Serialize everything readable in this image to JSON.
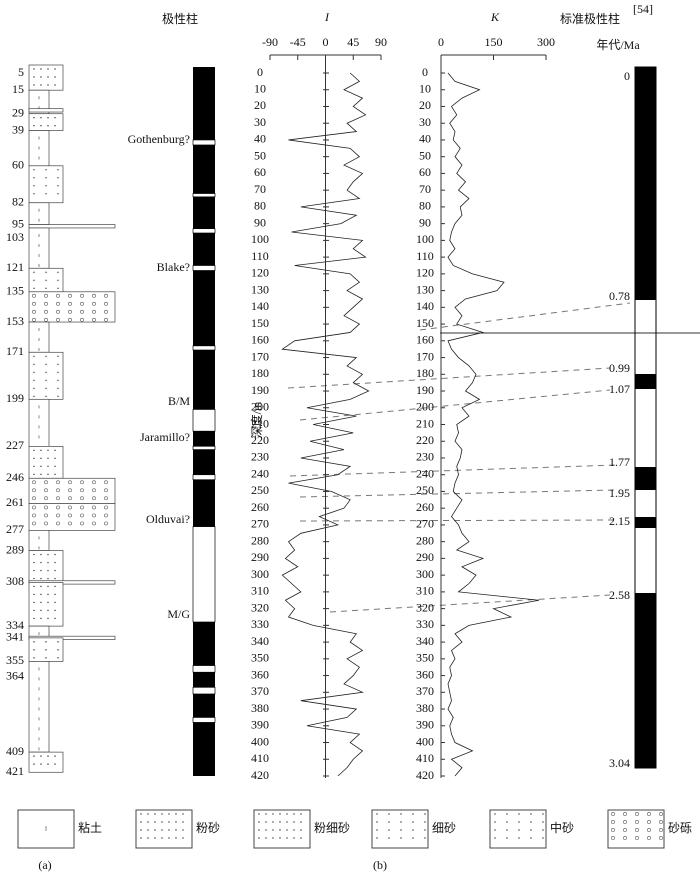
{
  "header": {
    "polarity_column": "极性柱",
    "I_label": "I",
    "K_label": "K",
    "standard_column": "标准极性柱",
    "standard_ref": "[54]",
    "age_label": "年代/Ma",
    "depth_label": "深度/m"
  },
  "lithology": {
    "depth_labels": [
      5,
      15,
      29,
      39,
      60,
      82,
      95,
      103,
      121,
      135,
      153,
      171,
      199,
      227,
      246,
      261,
      277,
      289,
      308,
      334,
      341,
      355,
      364,
      409,
      421
    ],
    "layers": [
      {
        "top": 0,
        "bottom": 15,
        "type": 1
      },
      {
        "top": 15,
        "bottom": 29,
        "type": 0
      },
      {
        "top": 26,
        "bottom": 28,
        "type": 3
      },
      {
        "top": 29,
        "bottom": 39,
        "type": 1
      },
      {
        "top": 39,
        "bottom": 60,
        "type": 0
      },
      {
        "top": 60,
        "bottom": 82,
        "type": 3
      },
      {
        "top": 82,
        "bottom": 95,
        "type": 0
      },
      {
        "top": 95,
        "bottom": 97,
        "type": 5
      },
      {
        "top": 97,
        "bottom": 121,
        "type": 0
      },
      {
        "top": 121,
        "bottom": 135,
        "type": 3
      },
      {
        "top": 135,
        "bottom": 153,
        "type": 5
      },
      {
        "top": 153,
        "bottom": 171,
        "type": 0
      },
      {
        "top": 171,
        "bottom": 199,
        "type": 4
      },
      {
        "top": 199,
        "bottom": 227,
        "type": 0
      },
      {
        "top": 227,
        "bottom": 246,
        "type": 1
      },
      {
        "top": 246,
        "bottom": 261,
        "type": 5
      },
      {
        "top": 261,
        "bottom": 277,
        "type": 5
      },
      {
        "top": 277,
        "bottom": 289,
        "type": 0
      },
      {
        "top": 289,
        "bottom": 308,
        "type": 1
      },
      {
        "top": 307,
        "bottom": 309,
        "type": 5
      },
      {
        "top": 308,
        "bottom": 334,
        "type": 1
      },
      {
        "top": 334,
        "bottom": 341,
        "type": 0
      },
      {
        "top": 340,
        "bottom": 342,
        "type": 5
      },
      {
        "top": 341,
        "bottom": 355,
        "type": 3
      },
      {
        "top": 355,
        "bottom": 409,
        "type": 0
      },
      {
        "top": 409,
        "bottom": 421,
        "type": 1
      }
    ]
  },
  "polarity": {
    "reversed_intervals": [
      [
        40,
        43
      ],
      [
        72,
        74
      ],
      [
        93,
        95.6
      ],
      [
        115,
        118
      ],
      [
        163,
        165.5
      ],
      [
        201,
        214
      ],
      [
        223,
        225
      ],
      [
        240,
        243
      ],
      [
        271,
        328
      ],
      [
        354,
        358
      ],
      [
        367,
        371
      ],
      [
        385,
        388
      ]
    ],
    "events": [
      "Gothenburg?",
      "Blake?",
      "B/M",
      "Jaramillo?",
      "Olduvai?",
      "M/G"
    ]
  },
  "depth": {
    "ylim": [
      0,
      420
    ],
    "ticks": [
      0,
      10,
      20,
      30,
      40,
      50,
      60,
      70,
      80,
      90,
      100,
      110,
      120,
      130,
      140,
      150,
      160,
      170,
      180,
      190,
      200,
      210,
      220,
      230,
      240,
      250,
      260,
      270,
      280,
      290,
      300,
      310,
      320,
      330,
      340,
      350,
      360,
      370,
      380,
      390,
      400,
      410,
      420
    ],
    "depths": [
      0,
      5,
      10,
      15,
      20,
      25,
      30,
      35,
      40,
      45,
      50,
      55,
      60,
      65,
      70,
      75,
      80,
      85,
      90,
      95,
      100,
      105,
      110,
      115,
      120,
      125,
      130,
      135,
      140,
      145,
      150,
      155,
      160,
      165,
      170,
      175,
      180,
      185,
      190,
      195,
      200,
      205,
      210,
      215,
      220,
      225,
      230,
      235,
      240,
      245,
      250,
      255,
      260,
      265,
      270,
      275,
      280,
      285,
      290,
      295,
      300,
      305,
      310,
      315,
      320,
      325,
      330,
      335,
      340,
      345,
      350,
      355,
      360,
      365,
      370,
      375,
      380,
      385,
      390,
      395,
      400,
      405,
      410,
      415,
      420
    ]
  },
  "I_panel": {
    "xlim": [
      -90,
      90
    ],
    "xticks": [
      -90,
      -45,
      0,
      45,
      90
    ],
    "values": [
      40,
      55,
      30,
      60,
      45,
      65,
      35,
      50,
      -60,
      40,
      55,
      30,
      60,
      45,
      35,
      55,
      -40,
      50,
      25,
      -55,
      60,
      45,
      65,
      -50,
      40,
      55,
      35,
      60,
      45,
      30,
      55,
      40,
      -50,
      -70,
      50,
      35,
      60,
      45,
      70,
      40,
      -30,
      50,
      -20,
      45,
      -25,
      30,
      -40,
      40,
      20,
      -60,
      10,
      40,
      30,
      -10,
      20,
      -40,
      -60,
      -50,
      -65,
      -45,
      -70,
      -55,
      -40,
      -65,
      -50,
      -60,
      -20,
      50,
      40,
      60,
      35,
      55,
      45,
      30,
      60,
      -40,
      50,
      35,
      -30,
      55,
      40,
      60,
      45,
      35,
      20
    ]
  },
  "K_panel": {
    "xlim": [
      0,
      300
    ],
    "xticks": [
      0,
      150,
      300
    ],
    "values": [
      20,
      40,
      110,
      60,
      30,
      45,
      25,
      40,
      35,
      55,
      40,
      60,
      45,
      70,
      50,
      80,
      55,
      60,
      40,
      30,
      25,
      40,
      20,
      35,
      90,
      180,
      160,
      70,
      40,
      60,
      45,
      120,
      20,
      30,
      50,
      80,
      100,
      90,
      70,
      110,
      60,
      80,
      45,
      50,
      40,
      60,
      55,
      45,
      50,
      40,
      35,
      60,
      45,
      30,
      50,
      60,
      80,
      45,
      120,
      60,
      100,
      80,
      50,
      280,
      150,
      200,
      80,
      40,
      60,
      30,
      40,
      25,
      30,
      20,
      25,
      30,
      20,
      35,
      25,
      30,
      40,
      90,
      30,
      60,
      40
    ]
  },
  "standard": {
    "ages": [
      0,
      0.78,
      0.99,
      1.07,
      1.77,
      1.95,
      2.15,
      2.58,
      3.04
    ]
  },
  "legend": [
    "粘土",
    "粉砂",
    "粉细砂",
    "细砂",
    "中砂",
    "砂砾"
  ],
  "panel_labels": [
    "(a)",
    "(b)"
  ]
}
